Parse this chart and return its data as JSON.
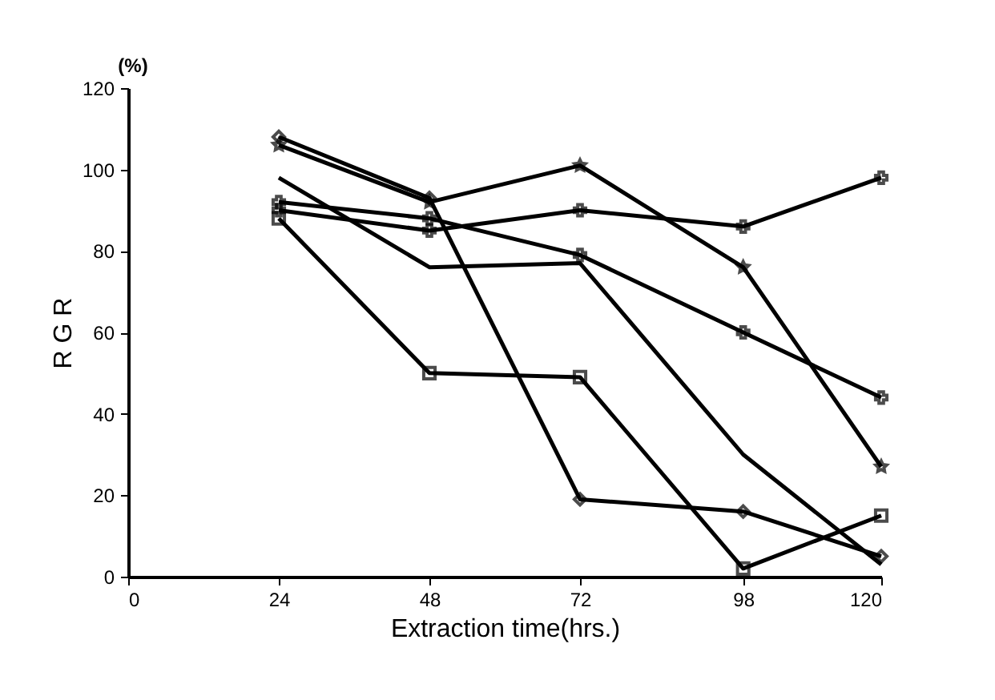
{
  "chart_data": {
    "type": "line",
    "xlabel": "Extraction time(hrs.)",
    "ylabel": "R G R",
    "annotations": [
      "(%)"
    ],
    "x": [
      24,
      48,
      72,
      98,
      120
    ],
    "series": [
      {
        "color": "#000000",
        "marker": "star",
        "values": [
          106,
          92,
          101,
          76,
          27
        ]
      },
      {
        "color": "#000000",
        "marker": "cross",
        "values": [
          90,
          85,
          90,
          86,
          98
        ]
      },
      {
        "color": "#000000",
        "marker": "cross",
        "values": [
          92,
          88,
          79,
          60,
          44
        ]
      },
      {
        "color": "#000000",
        "marker": "diamond",
        "values": [
          108,
          93,
          19,
          16,
          5
        ]
      },
      {
        "color": "#000000",
        "marker": "square",
        "values": [
          88,
          50,
          49,
          2,
          15
        ]
      },
      {
        "color": "#000000",
        "marker": "none",
        "values": [
          98,
          76,
          77,
          30,
          3
        ]
      }
    ],
    "xlim": [
      0,
      120
    ],
    "xticks": [
      0,
      24,
      48,
      72,
      98,
      120
    ],
    "ylim": [
      0,
      120
    ],
    "yticks": [
      0,
      20,
      40,
      60,
      80,
      100,
      120
    ],
    "grid": false,
    "line_style": "solid"
  }
}
